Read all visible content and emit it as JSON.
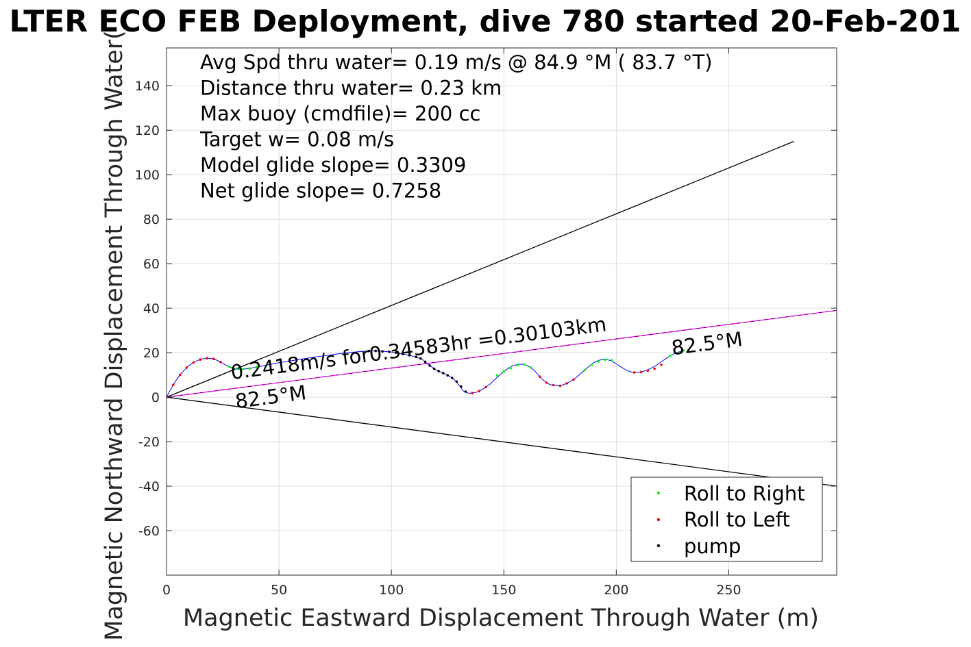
{
  "chart_data": {
    "type": "line",
    "title": "LTER ECO FEB Deployment, dive 780 started 20-Feb-201",
    "xlabel": "Magnetic Eastward Displacement Through Water (m)",
    "ylabel": "Magnetic Northward Displacement Through Water(",
    "xlim": [
      0,
      298
    ],
    "ylim": [
      -80,
      157
    ],
    "xticks": [
      0,
      50,
      100,
      150,
      200,
      250
    ],
    "yticks": [
      -60,
      -40,
      -20,
      0,
      20,
      40,
      60,
      80,
      100,
      120,
      140
    ],
    "grid": true,
    "legend_position": "bottom-right",
    "legend": [
      {
        "label": "Roll to Right",
        "color": "#00ff00"
      },
      {
        "label": "Roll to Left",
        "color": "#ff0000"
      },
      {
        "label": "pump",
        "color": "#000000"
      }
    ],
    "info_text": [
      "Avg Spd thru water=  0.19 m/s @  84.9 °M ( 83.7 °T)",
      "Distance thru water=  0.23 km",
      "Max buoy (cmdfile)= 200 cc",
      "Target w= 0.08 m/s",
      "Model glide slope= 0.3309",
      "Net glide slope= 0.7258"
    ],
    "annotations": [
      {
        "text": "0.2418m/s for0.34583hr =0.30103km",
        "x": 29,
        "y": 8,
        "angle_deg": -7.4
      },
      {
        "text": "82.5°M",
        "x": 31,
        "y": -5,
        "angle_deg": -7.4
      },
      {
        "text": "82.5°M",
        "x": 225,
        "y": 19,
        "angle_deg": -7.4
      }
    ],
    "series": [
      {
        "name": "track",
        "color": "#0000ff",
        "x": [
          0,
          2,
          4,
          6,
          8,
          10,
          12,
          14,
          16,
          18,
          20,
          22,
          24,
          26,
          28,
          30,
          32,
          34,
          36,
          38,
          40,
          45,
          50,
          55,
          60,
          65,
          70,
          75,
          80,
          85,
          90,
          95,
          100,
          105,
          108,
          111,
          114,
          116,
          118,
          120,
          122,
          124,
          126,
          128,
          130,
          132,
          134,
          136,
          138,
          140,
          142,
          144,
          146,
          148,
          150,
          152,
          154,
          156,
          158,
          160,
          162,
          164,
          166,
          168,
          170,
          172,
          174,
          176,
          178,
          180,
          182,
          184,
          186,
          188,
          190,
          192,
          194,
          196,
          198,
          200,
          202,
          204,
          206,
          208,
          210,
          212,
          214,
          216,
          218,
          220,
          222,
          224,
          226,
          228,
          230
        ],
        "y": [
          0,
          3.8,
          7.2,
          10,
          12.3,
          14.2,
          15.6,
          16.6,
          17.2,
          17.5,
          17.4,
          16.8,
          15.8,
          14.6,
          13.6,
          12.9,
          12.6,
          12.6,
          12.8,
          13.1,
          13.5,
          14.5,
          15.5,
          16.3,
          17.1,
          17.9,
          18.6,
          19.3,
          19.9,
          20.4,
          20.8,
          20.7,
          20.3,
          19.4,
          18.8,
          18.1,
          16.8,
          15,
          13.5,
          12.2,
          11.3,
          10.4,
          9.3,
          7.8,
          5.5,
          2.8,
          1.8,
          1.8,
          2.3,
          3.2,
          4.5,
          6,
          8,
          9.8,
          11.5,
          13,
          14.1,
          14.7,
          14.8,
          14.4,
          13.3,
          11.5,
          9.2,
          7.2,
          5.9,
          5.2,
          5.1,
          5.4,
          6.2,
          7.3,
          8.7,
          10.4,
          12.2,
          14,
          15.5,
          16.5,
          17,
          16.9,
          16.2,
          15,
          13.6,
          12.4,
          11.5,
          11.1,
          11.2,
          11.6,
          12.3,
          13.3,
          14.5,
          15.9,
          17.3,
          18.6,
          19.6,
          20.4,
          21
        ]
      },
      {
        "name": "model heading",
        "color": "#ff00ff",
        "x": [
          0,
          298
        ],
        "y": [
          0,
          39
        ]
      },
      {
        "name": "upper bound",
        "color": "#000000",
        "x": [
          0,
          279
        ],
        "y": [
          0,
          115
        ]
      },
      {
        "name": "lower bound",
        "color": "#000000",
        "x": [
          0,
          298
        ],
        "y": [
          0,
          -40
        ]
      }
    ],
    "roll_right_points": {
      "x": [
        28,
        31,
        34,
        37,
        40,
        147,
        150,
        153,
        156,
        159,
        162,
        186,
        189,
        192,
        195,
        198,
        224,
        227,
        230
      ],
      "y": [
        13.6,
        12.8,
        12.6,
        12.9,
        13.5,
        9.8,
        11.5,
        13,
        14.3,
        14.7,
        13.3,
        12.2,
        14.5,
        16,
        16.9,
        16.6,
        18.6,
        19.6,
        21
      ]
    },
    "roll_left_points": {
      "x": [
        0,
        3,
        6,
        9,
        12,
        15,
        18,
        21,
        24,
        136,
        139,
        142,
        166,
        169,
        172,
        175,
        178,
        181,
        208,
        211,
        214,
        217,
        220
      ],
      "y": [
        0,
        5.5,
        10,
        13.3,
        15.6,
        16.9,
        17.5,
        17.2,
        15.8,
        1.8,
        2.7,
        4.5,
        9.2,
        6.5,
        5.4,
        5.1,
        6.2,
        7.9,
        11.1,
        11.3,
        11.9,
        12.8,
        14.5
      ]
    },
    "pump_points": {
      "x": [
        90,
        93,
        96,
        99,
        102,
        105,
        108,
        111,
        113,
        115,
        117,
        119,
        121,
        123,
        125,
        127,
        129,
        131,
        133
      ],
      "y": [
        20.8,
        20.8,
        20.6,
        20.4,
        20,
        19.4,
        18.8,
        18.1,
        17.4,
        15.9,
        14.2,
        12.8,
        11.7,
        10.8,
        9.8,
        8.6,
        7,
        4.8,
        2.5
      ]
    }
  }
}
